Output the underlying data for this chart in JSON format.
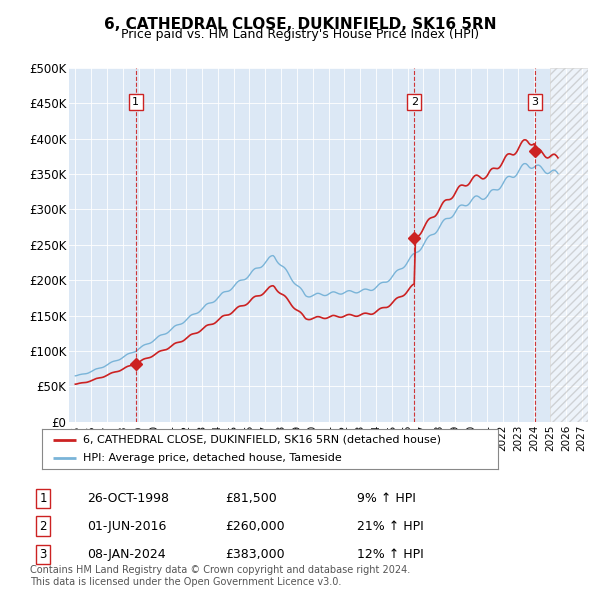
{
  "title": "6, CATHEDRAL CLOSE, DUKINFIELD, SK16 5RN",
  "subtitle": "Price paid vs. HM Land Registry's House Price Index (HPI)",
  "title_fontsize": 11,
  "subtitle_fontsize": 9,
  "ylim": [
    0,
    500000
  ],
  "yticks": [
    0,
    50000,
    100000,
    150000,
    200000,
    250000,
    300000,
    350000,
    400000,
    450000,
    500000
  ],
  "ytick_labels": [
    "£0",
    "£50K",
    "£100K",
    "£150K",
    "£200K",
    "£250K",
    "£300K",
    "£350K",
    "£400K",
    "£450K",
    "£500K"
  ],
  "xlim_start": 1994.6,
  "xlim_end": 2027.4,
  "xticks": [
    1995,
    1996,
    1997,
    1998,
    1999,
    2000,
    2001,
    2002,
    2003,
    2004,
    2005,
    2006,
    2007,
    2008,
    2009,
    2010,
    2011,
    2012,
    2013,
    2014,
    2015,
    2016,
    2017,
    2018,
    2019,
    2020,
    2021,
    2022,
    2023,
    2024,
    2025,
    2026,
    2027
  ],
  "hpi_line_color": "#7ab4d8",
  "price_line_color": "#cc2222",
  "sale1_date": 1998.82,
  "sale1_price": 81500,
  "sale1_label": "1",
  "sale2_date": 2016.42,
  "sale2_price": 260000,
  "sale2_label": "2",
  "sale3_date": 2024.03,
  "sale3_price": 383000,
  "sale3_label": "3",
  "hatch_start": 2025.0,
  "legend_line1": "6, CATHEDRAL CLOSE, DUKINFIELD, SK16 5RN (detached house)",
  "legend_line2": "HPI: Average price, detached house, Tameside",
  "table_data": [
    {
      "num": "1",
      "date": "26-OCT-1998",
      "price": "£81,500",
      "hpi": "9% ↑ HPI"
    },
    {
      "num": "2",
      "date": "01-JUN-2016",
      "price": "£260,000",
      "hpi": "21% ↑ HPI"
    },
    {
      "num": "3",
      "date": "08-JAN-2024",
      "price": "£383,000",
      "hpi": "12% ↑ HPI"
    }
  ],
  "footnote": "Contains HM Land Registry data © Crown copyright and database right 2024.\nThis data is licensed under the Open Government Licence v3.0.",
  "bg_color": "#ffffff",
  "plot_bg_color": "#dce8f5"
}
